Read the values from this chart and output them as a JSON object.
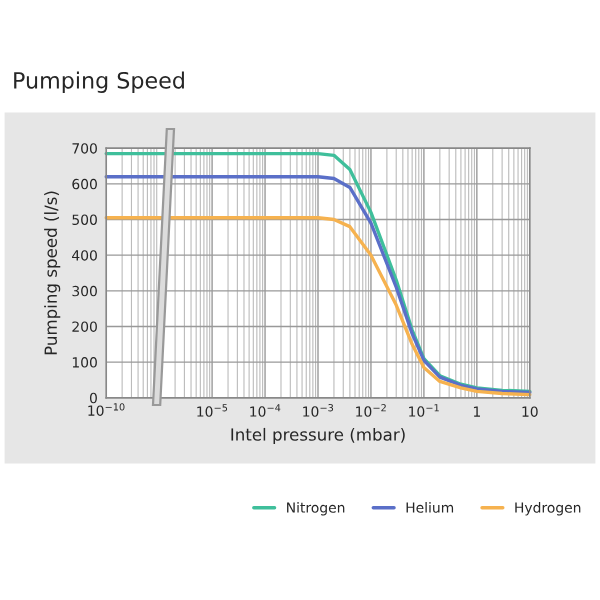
{
  "chart_data": {
    "type": "line",
    "title": "Pumping Speed",
    "ylabel": "Pumping speed (l/s)",
    "xlabel": "Intel pressure (mbar)",
    "log": "x",
    "grid": true,
    "legend": "bottom",
    "annotations": [
      "10$^{−10}$"
    ],
    "xlim": [
      1e-07,
      10
    ],
    "xticks": [
      {
        "value": 1e-05,
        "label": "10$^{−5}$"
      },
      {
        "value": 0.0001,
        "label": "10$^{−4}$"
      },
      {
        "value": 0.001,
        "label": "10$^{−3}$"
      },
      {
        "value": 0.01,
        "label": "10$^{−2}$"
      },
      {
        "value": 0.1,
        "label": "10$^{−1}$"
      },
      1,
      10
    ],
    "ylim": [
      0,
      700
    ],
    "yticks": [
      0,
      100,
      200,
      300,
      400,
      500,
      600,
      700
    ],
    "series": [
      {
        "name": "Nitrogen",
        "color": "#3fbf9b",
        "x": [
          1e-07,
          0.001,
          0.002,
          0.004,
          0.01,
          0.03,
          0.06,
          0.1,
          0.2,
          0.5,
          1,
          3,
          10
        ],
        "values": [
          685,
          685,
          680,
          640,
          520,
          330,
          190,
          110,
          62,
          38,
          28,
          21,
          18
        ]
      },
      {
        "name": "Helium",
        "color": "#5a6fc8",
        "x": [
          1e-07,
          0.001,
          0.002,
          0.004,
          0.01,
          0.03,
          0.06,
          0.1,
          0.2,
          0.5,
          1,
          3,
          10
        ],
        "values": [
          620,
          620,
          615,
          590,
          490,
          310,
          180,
          105,
          58,
          35,
          25,
          18,
          15
        ]
      },
      {
        "name": "Hydrogen",
        "color": "#f6b24f",
        "x": [
          1e-07,
          0.001,
          0.002,
          0.004,
          0.01,
          0.03,
          0.06,
          0.1,
          0.2,
          0.5,
          1,
          3,
          10
        ],
        "values": [
          505,
          505,
          500,
          480,
          400,
          260,
          150,
          85,
          46,
          28,
          18,
          12,
          9
        ]
      }
    ]
  }
}
